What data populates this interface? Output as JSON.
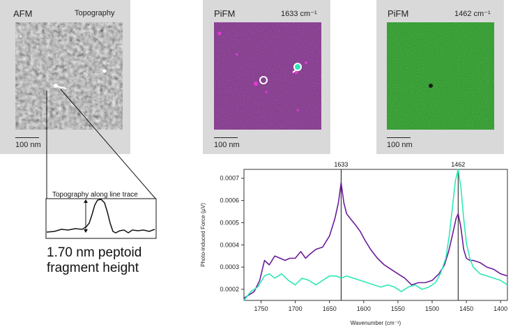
{
  "panels": [
    {
      "title": "AFM",
      "subtitle": "Topography",
      "scale": "100 nm"
    },
    {
      "title": "PiFM",
      "subtitle": "1633 cm⁻¹",
      "scale": "100 nm"
    },
    {
      "title": "PiFM",
      "subtitle": "1462 cm⁻¹",
      "scale": "100 nm"
    }
  ],
  "inset": {
    "title": "Topography along line trace"
  },
  "caption": {
    "line1": "1.70 nm peptoid",
    "line2": "fragment height"
  },
  "colors": {
    "purple": "#6a1b9a",
    "teal": "#2ee8b6",
    "afm_gray": "#8d8d8d",
    "pifm_purple_bg": "#5a1266",
    "pifm_green_bg": "#26a21e"
  },
  "chart_data": {
    "type": "line",
    "xlabel": "Wavenumber (cm⁻¹)",
    "ylabel": "Photo-induced Force (µV)",
    "xlim": [
      1775,
      1390
    ],
    "ylim": [
      0.00015,
      0.00074
    ],
    "xticks": [
      "1750",
      "1700",
      "1650",
      "1600",
      "1550",
      "1500",
      "1450",
      "1400"
    ],
    "yticks": [
      "0.0002",
      "0.0003",
      "0.0004",
      "0.0005",
      "0.0006",
      "0.0007"
    ],
    "annotations": [
      "1633",
      "1462"
    ],
    "annotation_x": [
      1633,
      1462
    ],
    "series": [
      {
        "color": "#6a1b9a",
        "x": [
          1775,
          1760,
          1752,
          1745,
          1738,
          1730,
          1722,
          1715,
          1708,
          1700,
          1692,
          1685,
          1678,
          1670,
          1660,
          1650,
          1642,
          1637,
          1633,
          1629,
          1625,
          1620,
          1612,
          1605,
          1598,
          1590,
          1580,
          1570,
          1560,
          1550,
          1540,
          1530,
          1520,
          1510,
          1500,
          1490,
          1482,
          1476,
          1470,
          1465,
          1462,
          1458,
          1454,
          1450,
          1445,
          1440,
          1430,
          1420,
          1410,
          1400,
          1390
        ],
        "y": [
          0.00016,
          0.00019,
          0.00024,
          0.00033,
          0.00031,
          0.00035,
          0.00034,
          0.00033,
          0.00034,
          0.00034,
          0.00037,
          0.00034,
          0.00036,
          0.00038,
          0.00039,
          0.00044,
          0.00052,
          0.00059,
          0.00068,
          0.00059,
          0.00054,
          0.00052,
          0.00049,
          0.00046,
          0.00042,
          0.00038,
          0.00034,
          0.00031,
          0.00029,
          0.00027,
          0.00025,
          0.00022,
          0.00023,
          0.00023,
          0.00024,
          0.00027,
          0.00031,
          0.00037,
          0.00045,
          0.00052,
          0.00054,
          0.00048,
          0.00038,
          0.00034,
          0.00033,
          0.00033,
          0.00032,
          0.0003,
          0.00029,
          0.00027,
          0.00026
        ]
      },
      {
        "color": "#2ee8b6",
        "x": [
          1775,
          1765,
          1755,
          1745,
          1738,
          1730,
          1720,
          1710,
          1700,
          1690,
          1680,
          1670,
          1660,
          1650,
          1640,
          1633,
          1625,
          1615,
          1605,
          1595,
          1585,
          1575,
          1565,
          1555,
          1545,
          1535,
          1525,
          1515,
          1505,
          1495,
          1488,
          1480,
          1475,
          1470,
          1466,
          1462,
          1458,
          1454,
          1450,
          1445,
          1440,
          1430,
          1420,
          1410,
          1400,
          1390
        ],
        "y": [
          0.00015,
          0.00019,
          0.00021,
          0.00026,
          0.00027,
          0.00025,
          0.00027,
          0.00024,
          0.00022,
          0.00025,
          0.00024,
          0.00022,
          0.00024,
          0.00026,
          0.00026,
          0.00025,
          0.00026,
          0.00025,
          0.00024,
          0.00023,
          0.00022,
          0.00021,
          0.00022,
          0.00021,
          0.00019,
          0.00021,
          0.00022,
          0.0002,
          0.00021,
          0.00023,
          0.00027,
          0.00034,
          0.00044,
          0.00058,
          0.00069,
          0.00074,
          0.00066,
          0.00052,
          0.00041,
          0.00034,
          0.0003,
          0.00027,
          0.00026,
          0.00025,
          0.00024,
          0.00022
        ]
      }
    ]
  }
}
